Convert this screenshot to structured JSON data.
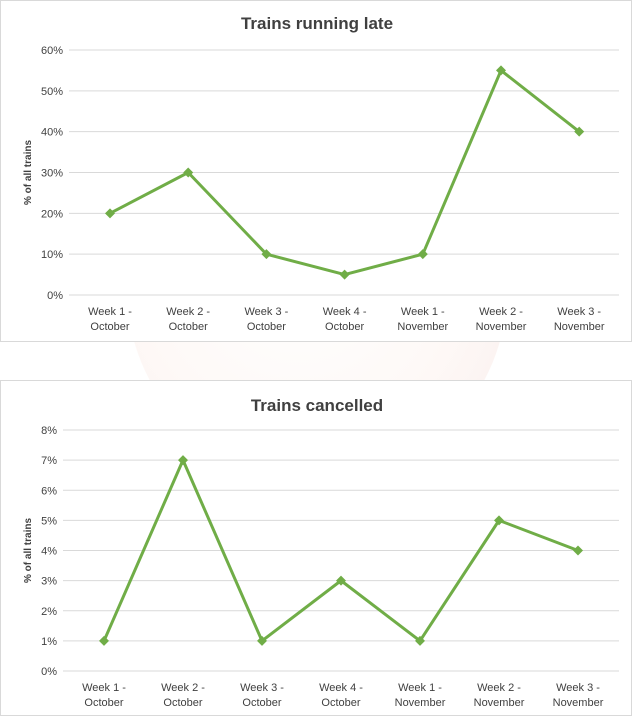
{
  "watermark": {
    "text": "雅思情报圈"
  },
  "chart_data": [
    {
      "type": "line",
      "title": "Trains running late",
      "ylabel": "% of all trains",
      "xlabel": "",
      "categories": [
        [
          "Week 1 -",
          "October"
        ],
        [
          "Week 2 -",
          "October"
        ],
        [
          "Week 3 -",
          "October"
        ],
        [
          "Week 4 -",
          "October"
        ],
        [
          "Week 1 -",
          "November"
        ],
        [
          "Week 2 -",
          "November"
        ],
        [
          "Week 3 -",
          "November"
        ]
      ],
      "values": [
        20,
        30,
        10,
        5,
        10,
        55,
        40
      ],
      "ylim": [
        0,
        60
      ],
      "yticks": [
        0,
        10,
        20,
        30,
        40,
        50,
        60
      ],
      "ytick_labels": [
        "0%",
        "10%",
        "20%",
        "30%",
        "40%",
        "50%",
        "60%"
      ],
      "grid": true,
      "legend": "none",
      "color": "#70ad47",
      "marker": "diamond"
    },
    {
      "type": "line",
      "title": "Trains cancelled",
      "ylabel": "% of all trains",
      "xlabel": "",
      "categories": [
        [
          "Week 1 -",
          "October"
        ],
        [
          "Week 2 -",
          "October"
        ],
        [
          "Week 3 -",
          "October"
        ],
        [
          "Week 4 -",
          "October"
        ],
        [
          "Week 1 -",
          "November"
        ],
        [
          "Week 2 -",
          "November"
        ],
        [
          "Week 3 -",
          "November"
        ]
      ],
      "values": [
        1,
        7,
        1,
        3,
        1,
        5,
        4
      ],
      "ylim": [
        0,
        8
      ],
      "yticks": [
        0,
        1,
        2,
        3,
        4,
        5,
        6,
        7,
        8
      ],
      "ytick_labels": [
        "0%",
        "1%",
        "2%",
        "3%",
        "4%",
        "5%",
        "6%",
        "7%",
        "8%"
      ],
      "grid": true,
      "legend": "none",
      "color": "#70ad47",
      "marker": "diamond"
    }
  ]
}
